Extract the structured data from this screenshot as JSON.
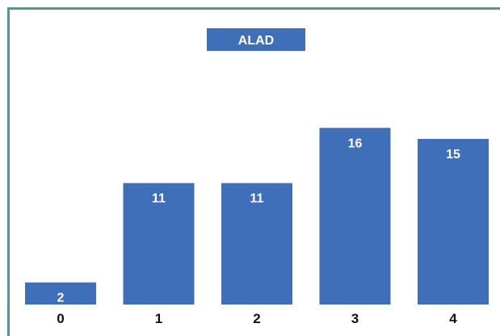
{
  "chart_data": {
    "type": "bar",
    "title": "ALAD",
    "categories": [
      "0",
      "1",
      "2",
      "3",
      "4"
    ],
    "values": [
      2,
      11,
      11,
      16,
      15
    ],
    "ylim": [
      0,
      18
    ],
    "grid": false,
    "legend": "none",
    "colors": {
      "bar": "#3f6fb8",
      "title_box": "#3f6fb8",
      "frame": "#4d9a96"
    }
  }
}
